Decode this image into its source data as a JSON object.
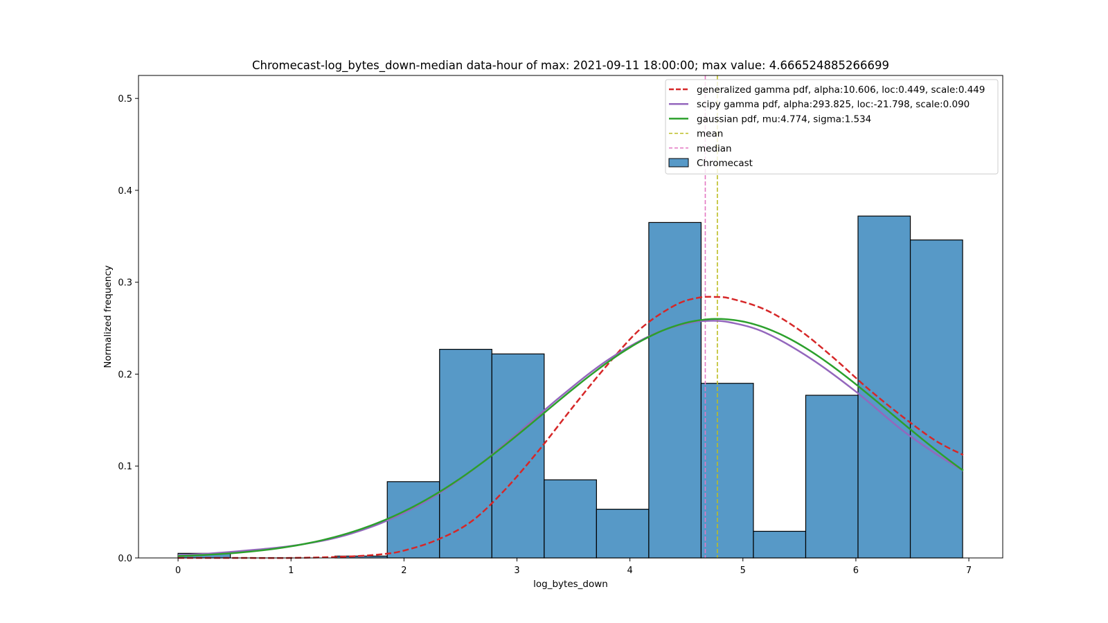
{
  "chart_data": {
    "type": "bar",
    "title": "Chromecast-log_bytes_down-median data-hour of max: 2021-09-11 18:00:00; max value: 4.666524885266699",
    "xlabel": "log_bytes_down",
    "ylabel": "Normalized frequency",
    "xlim": [
      -0.35,
      7.3
    ],
    "ylim": [
      0,
      0.525
    ],
    "xticks": [
      0,
      1,
      2,
      3,
      4,
      5,
      6,
      7
    ],
    "yticks": [
      0.0,
      0.1,
      0.2,
      0.3,
      0.4,
      0.5
    ],
    "xtick_labels": [
      "0",
      "1",
      "2",
      "3",
      "4",
      "5",
      "6",
      "7"
    ],
    "ytick_labels": [
      "0.0",
      "0.1",
      "0.2",
      "0.3",
      "0.4",
      "0.5"
    ],
    "grid": false,
    "legend_position": "top-right",
    "histogram": {
      "name": "Chromecast",
      "color": "#5799c7",
      "edge_color": "#000000",
      "bin_start": 0.0,
      "bin_width": 0.463,
      "values": [
        0.005,
        0.0,
        0.0,
        0.002,
        0.083,
        0.227,
        0.222,
        0.085,
        0.053,
        0.365,
        0.19,
        0.029,
        0.177,
        0.372,
        0.346
      ]
    },
    "curves": [
      {
        "name": "generalized gamma pdf, alpha:10.606, loc:0.449, scale:0.449",
        "kind": "gengamma",
        "color": "#d62728",
        "dash": "dashed",
        "x": [
          0.0,
          0.5,
          1.0,
          1.5,
          1.8,
          2.0,
          2.3,
          2.6,
          2.9,
          3.2,
          3.5,
          3.8,
          4.1,
          4.4,
          4.6,
          4.75,
          4.9,
          5.2,
          5.5,
          5.8,
          6.1,
          6.4,
          6.7,
          6.95
        ],
        "y": [
          0.0,
          0.0,
          0.0,
          0.0015,
          0.004,
          0.008,
          0.02,
          0.04,
          0.075,
          0.118,
          0.165,
          0.21,
          0.25,
          0.275,
          0.283,
          0.284,
          0.282,
          0.27,
          0.248,
          0.218,
          0.185,
          0.155,
          0.128,
          0.112
        ]
      },
      {
        "name": "scipy gamma pdf, alpha:293.825, loc:-21.798, scale:0.090",
        "kind": "gamma",
        "color": "#9467bd",
        "dash": "solid",
        "x": [
          0.0,
          0.3,
          0.6,
          1.0,
          1.4,
          1.8,
          2.2,
          2.6,
          3.0,
          3.4,
          3.8,
          4.2,
          4.5,
          4.7,
          4.9,
          5.2,
          5.6,
          6.0,
          6.4,
          6.7,
          6.95
        ],
        "y": [
          0.003,
          0.005,
          0.008,
          0.013,
          0.022,
          0.038,
          0.062,
          0.095,
          0.135,
          0.177,
          0.215,
          0.243,
          0.255,
          0.258,
          0.256,
          0.245,
          0.217,
          0.181,
          0.14,
          0.114,
          0.095
        ]
      },
      {
        "name": "gaussian pdf, mu:4.774, sigma:1.534",
        "kind": "normal",
        "color": "#2ca02c",
        "dash": "solid",
        "mu": 4.774,
        "sigma": 1.534,
        "x_range": [
          0.0,
          6.95
        ]
      }
    ],
    "vlines": [
      {
        "name": "mean",
        "x": 4.774,
        "color": "#bcbd22"
      },
      {
        "name": "median",
        "x": 4.667,
        "color": "#e377c2"
      }
    ],
    "legend": [
      {
        "label": "generalized gamma pdf, alpha:10.606, loc:0.449, scale:0.449",
        "kind": "line-dashed-thick",
        "color": "#d62728"
      },
      {
        "label": "scipy gamma pdf, alpha:293.825, loc:-21.798, scale:0.090",
        "kind": "line",
        "color": "#9467bd"
      },
      {
        "label": "gaussian pdf, mu:4.774, sigma:1.534",
        "kind": "line",
        "color": "#2ca02c"
      },
      {
        "label": "mean",
        "kind": "line-dashed",
        "color": "#bcbd22"
      },
      {
        "label": "median",
        "kind": "line-dashed",
        "color": "#e377c2"
      },
      {
        "label": "Chromecast",
        "kind": "patch",
        "color": "#5799c7"
      }
    ]
  }
}
